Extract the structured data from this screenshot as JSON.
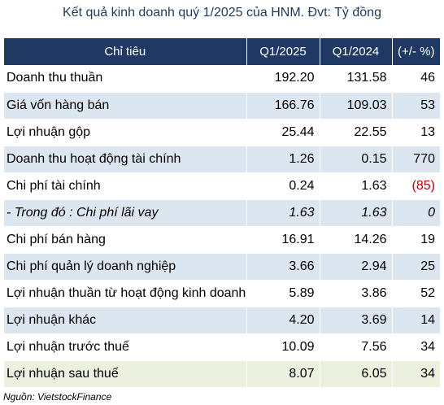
{
  "title": "Kết quả kinh doanh quý 1/2025 của HNM. Đvt: Tỷ đồng",
  "table": {
    "headers": [
      "Chỉ tiêu",
      "Q1/2025",
      "Q1/2024",
      "(+/- %)"
    ],
    "rows": [
      {
        "label": "Doanh thu thuần",
        "q1_2025": "192.20",
        "q1_2024": "131.58",
        "change": "46",
        "style": "white"
      },
      {
        "label": "Giá vốn hàng bán",
        "q1_2025": "166.76",
        "q1_2024": "109.03",
        "change": "53",
        "style": "blue"
      },
      {
        "label": "Lợi nhuận gộp",
        "q1_2025": "25.44",
        "q1_2024": "22.55",
        "change": "13",
        "style": "white"
      },
      {
        "label": "Doanh thu hoạt động tài chính",
        "q1_2025": "1.26",
        "q1_2024": "0.15",
        "change": "770",
        "style": "blue"
      },
      {
        "label": "Chi phí tài chính",
        "q1_2025": "0.24",
        "q1_2024": "1.63",
        "change": "(85)",
        "style": "white",
        "negative": true
      },
      {
        "label": "- Trong đó : Chi phí lãi vay",
        "q1_2025": "1.63",
        "q1_2024": "1.63",
        "change": "0",
        "style": "blue",
        "italic": true
      },
      {
        "label": "Chi phí bán hàng",
        "q1_2025": "16.91",
        "q1_2024": "14.26",
        "change": "19",
        "style": "white"
      },
      {
        "label": "Chi phí quản lý doanh nghiệp",
        "q1_2025": "3.66",
        "q1_2024": "2.94",
        "change": "25",
        "style": "blue"
      },
      {
        "label": "Lợi nhuận thuần từ hoạt động kinh doanh",
        "q1_2025": "5.89",
        "q1_2024": "3.86",
        "change": "52",
        "style": "white"
      },
      {
        "label": "Lợi nhuận khác",
        "q1_2025": "4.20",
        "q1_2024": "3.69",
        "change": "14",
        "style": "blue"
      },
      {
        "label": "Lợi nhuận trước thuế",
        "q1_2025": "10.09",
        "q1_2024": "7.56",
        "change": "34",
        "style": "white"
      },
      {
        "label": "Lợi nhuận sau thuế",
        "q1_2025": "8.07",
        "q1_2024": "6.05",
        "change": "34",
        "style": "green"
      }
    ]
  },
  "source": "Nguồn: VietstockFinance",
  "colors": {
    "header_bg": "#1f3864",
    "row_blue": "#dce6f1",
    "row_green": "#ebf1de",
    "negative": "#c00000"
  }
}
